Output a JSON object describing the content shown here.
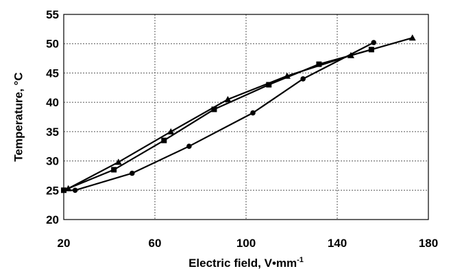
{
  "chart_data": {
    "type": "line",
    "title": "",
    "xlabel": "Electric field, V•mm",
    "xlabel_superscript": "-1",
    "ylabel": "Temperature, °C",
    "xlim": [
      20,
      180
    ],
    "ylim": [
      20,
      55
    ],
    "x_ticks": [
      "20",
      "60",
      "100",
      "140",
      "180"
    ],
    "y_ticks": [
      "20",
      "25",
      "30",
      "35",
      "40",
      "45",
      "50",
      "55"
    ],
    "grid": true,
    "series": [
      {
        "marker": "circle",
        "x": [
          20,
          25,
          50,
          75,
          103,
          125,
          156
        ],
        "y": [
          25,
          25,
          27.9,
          32.5,
          38.2,
          44,
          50.2
        ]
      },
      {
        "marker": "square",
        "x": [
          20,
          42,
          64,
          86,
          110,
          132,
          155
        ],
        "y": [
          25,
          28.5,
          33.5,
          38.8,
          43,
          46.5,
          49
        ]
      },
      {
        "marker": "triangle",
        "x": [
          22,
          44,
          67,
          92,
          118,
          146,
          173
        ],
        "y": [
          25.3,
          29.8,
          35,
          40.5,
          44.5,
          48,
          51
        ]
      }
    ]
  }
}
